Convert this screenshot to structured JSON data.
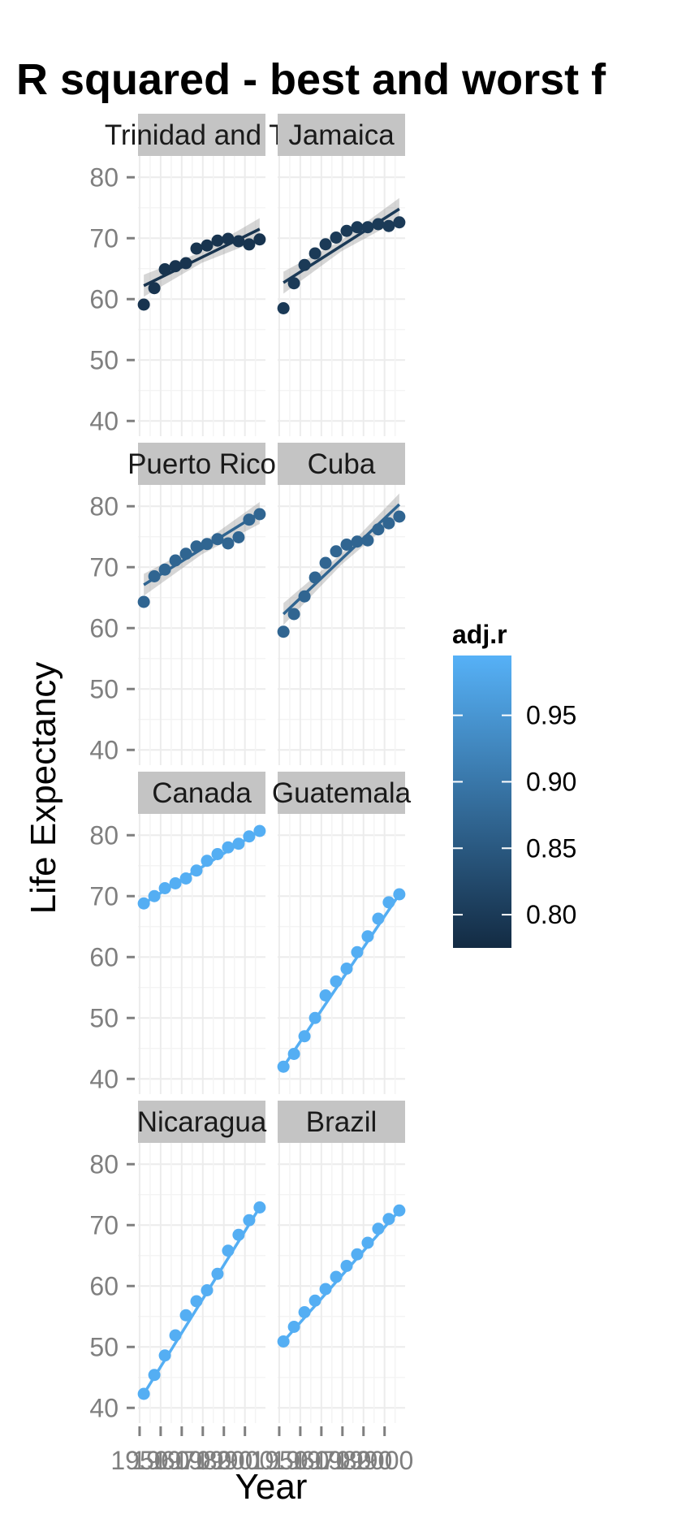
{
  "chart_data": {
    "type": "scatter",
    "title": "R squared - best and worst f",
    "xlabel": "Year",
    "ylabel": "Life Expectancy",
    "ylim": [
      40,
      80
    ],
    "y_ticks": [
      40,
      50,
      60,
      70,
      80
    ],
    "x": [
      1952,
      1957,
      1962,
      1967,
      1972,
      1977,
      1982,
      1987,
      1992,
      1997,
      2002,
      2007
    ],
    "x_tick_labels": [
      "1950",
      "1960",
      "1970",
      "1980",
      "1990",
      "2000"
    ],
    "x_tick_values": [
      1950,
      1960,
      1970,
      1980,
      1990,
      2000
    ],
    "legend": {
      "title": "adj.r",
      "placement": "right",
      "min": 0.775,
      "max": 0.995,
      "ticks": [
        0.8,
        0.85,
        0.9,
        0.95
      ],
      "tick_labels": [
        "0.80",
        "0.85",
        "0.90",
        "0.95"
      ],
      "color_low": "#132b43",
      "color_high": "#56b1f7"
    },
    "grid": true,
    "panels": [
      {
        "name": "Trinidad and To",
        "adj_r": 0.79,
        "values": [
          59.1,
          61.8,
          64.9,
          65.4,
          65.9,
          68.3,
          68.8,
          69.6,
          69.9,
          69.5,
          68.98,
          69.8
        ],
        "fit": [
          62.2,
          71.5
        ],
        "band": true
      },
      {
        "name": "Jamaica",
        "adj_r": 0.8,
        "values": [
          58.5,
          62.6,
          65.6,
          67.5,
          69.0,
          70.1,
          71.2,
          71.8,
          71.8,
          72.3,
          72.0,
          72.6
        ],
        "fit": [
          62.7,
          74.8
        ],
        "band": true
      },
      {
        "name": "Puerto Rico",
        "adj_r": 0.87,
        "values": [
          64.3,
          68.5,
          69.6,
          71.1,
          72.2,
          73.4,
          73.8,
          74.6,
          73.9,
          74.9,
          77.8,
          78.7
        ],
        "fit": [
          67.1,
          78.9
        ],
        "band": true
      },
      {
        "name": "Cuba",
        "adj_r": 0.87,
        "values": [
          59.4,
          62.3,
          65.2,
          68.3,
          70.7,
          72.6,
          73.7,
          74.2,
          74.4,
          76.2,
          77.2,
          78.3
        ],
        "fit": [
          62.3,
          80.3
        ],
        "band": true
      },
      {
        "name": "Canada",
        "adj_r": 0.99,
        "values": [
          68.8,
          70.0,
          71.3,
          72.1,
          72.9,
          74.2,
          75.8,
          76.9,
          78.0,
          78.6,
          79.8,
          80.7
        ],
        "fit": [
          68.8,
          80.7
        ],
        "band": false
      },
      {
        "name": "Guatemala",
        "adj_r": 0.99,
        "values": [
          42.0,
          44.1,
          47.0,
          50.0,
          53.7,
          56.0,
          58.1,
          60.8,
          63.4,
          66.3,
          68.98,
          70.3
        ],
        "fit": [
          42.0,
          70.3
        ],
        "band": false
      },
      {
        "name": "Nicaragua",
        "adj_r": 0.99,
        "values": [
          42.3,
          45.4,
          48.6,
          51.9,
          55.2,
          57.5,
          59.3,
          62.0,
          65.8,
          68.4,
          70.8,
          72.9
        ],
        "fit": [
          42.3,
          72.9
        ],
        "band": false
      },
      {
        "name": "Brazil",
        "adj_r": 0.99,
        "values": [
          50.9,
          53.3,
          55.7,
          57.6,
          59.5,
          61.5,
          63.3,
          65.2,
          67.1,
          69.4,
          71.0,
          72.4
        ],
        "fit": [
          50.9,
          72.4
        ],
        "band": false
      }
    ]
  }
}
